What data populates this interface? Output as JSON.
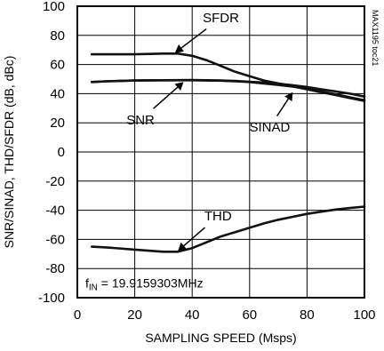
{
  "chart_data": {
    "type": "line",
    "xlabel": "SAMPLING SPEED (Msps)",
    "ylabel": "SNR/SINAD, THD/SFDR (dB, dBc)",
    "xlim": [
      0,
      100
    ],
    "ylim": [
      -100,
      100
    ],
    "xticks": [
      0,
      20,
      40,
      60,
      80,
      100
    ],
    "yticks": [
      100,
      80,
      60,
      40,
      20,
      0,
      -20,
      -40,
      -60,
      -80,
      -100
    ],
    "grid": true,
    "code": "MAX1195 toc21",
    "fin_label": {
      "f": "f",
      "sub": "IN",
      "rest": " = 19.9159303MHz"
    },
    "series": [
      {
        "name": "SFDR",
        "x": [
          5,
          10,
          20,
          30,
          35,
          40,
          45,
          50,
          55,
          60,
          65,
          70,
          75,
          80,
          85,
          90,
          95,
          100
        ],
        "values": [
          67,
          67,
          67,
          67.5,
          67.5,
          66,
          63,
          59,
          55,
          52,
          49,
          47,
          45,
          43,
          41,
          39,
          37,
          35
        ]
      },
      {
        "name": "SNR",
        "x": [
          5,
          10,
          20,
          30,
          40,
          50,
          55,
          60,
          65,
          70,
          75,
          80,
          85,
          90,
          95,
          100
        ],
        "values": [
          48,
          48.5,
          49,
          49.2,
          49.3,
          49,
          48.7,
          48.2,
          47.6,
          46.8,
          45.8,
          44.6,
          43,
          41.5,
          40,
          38
        ]
      },
      {
        "name": "SINAD",
        "x": [
          5,
          10,
          20,
          30,
          40,
          50,
          55,
          60,
          65,
          70,
          75,
          80,
          85,
          90,
          95,
          100
        ],
        "values": [
          48,
          48.5,
          49,
          49.2,
          49.2,
          48.9,
          48.5,
          48,
          47,
          46,
          44.8,
          43.3,
          41.5,
          39.5,
          37.5,
          35.5
        ]
      },
      {
        "name": "THD",
        "x": [
          5,
          10,
          20,
          30,
          35,
          40,
          45,
          50,
          55,
          60,
          65,
          70,
          75,
          80,
          85,
          90,
          95,
          100
        ],
        "values": [
          -65,
          -65.5,
          -67,
          -68.5,
          -68.5,
          -66,
          -62,
          -58,
          -55,
          -52,
          -49,
          -46.5,
          -44.5,
          -42.5,
          -41,
          -39.5,
          -38.5,
          -37.5
        ]
      }
    ],
    "annotations": [
      {
        "text": "SFDR",
        "x": 50,
        "y": 92,
        "target_x": 34,
        "target_y": 68
      },
      {
        "text": "SNR",
        "x": 22,
        "y": 22,
        "target_x": 37,
        "target_y": 48
      },
      {
        "text": "SINAD",
        "x": 67,
        "y": 17,
        "target_x": 75,
        "target_y": 41
      },
      {
        "text": "THD",
        "x": 49,
        "y": -44,
        "target_x": 35,
        "target_y": -68
      }
    ]
  }
}
